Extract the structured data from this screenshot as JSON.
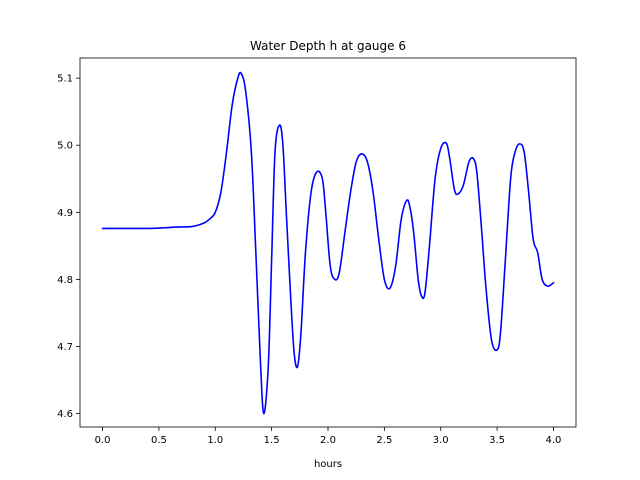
{
  "chart_data": {
    "type": "line",
    "title": "Water Depth h at gauge 6",
    "xlabel": "hours",
    "ylabel": "",
    "xlim": [
      -0.2,
      4.2
    ],
    "ylim": [
      4.58,
      5.13
    ],
    "xticks": [
      0.0,
      0.5,
      1.0,
      1.5,
      2.0,
      2.5,
      3.0,
      3.5,
      4.0
    ],
    "xtick_labels": [
      "0.0",
      "0.5",
      "1.0",
      "1.5",
      "2.0",
      "2.5",
      "3.0",
      "3.5",
      "4.0"
    ],
    "yticks": [
      4.6,
      4.7,
      4.8,
      4.9,
      5.0,
      5.1
    ],
    "ytick_labels": [
      "4.6",
      "4.7",
      "4.8",
      "4.9",
      "5.0",
      "5.1"
    ],
    "grid": false,
    "legend": "none",
    "series": [
      {
        "color": "#0000ff",
        "x": [
          0.0,
          0.2,
          0.4,
          0.55,
          0.65,
          0.8,
          0.9,
          0.95,
          1.0,
          1.05,
          1.1,
          1.15,
          1.2,
          1.23,
          1.27,
          1.32,
          1.36,
          1.4,
          1.43,
          1.47,
          1.5,
          1.53,
          1.57,
          1.6,
          1.63,
          1.67,
          1.7,
          1.73,
          1.76,
          1.8,
          1.85,
          1.9,
          1.95,
          1.98,
          2.02,
          2.06,
          2.1,
          2.15,
          2.2,
          2.25,
          2.3,
          2.35,
          2.4,
          2.45,
          2.5,
          2.55,
          2.6,
          2.65,
          2.7,
          2.73,
          2.76,
          2.8,
          2.83,
          2.86,
          2.9,
          2.95,
          3.0,
          3.05,
          3.08,
          3.12,
          3.15,
          3.2,
          3.25,
          3.29,
          3.32,
          3.36,
          3.4,
          3.45,
          3.5,
          3.53,
          3.57,
          3.62,
          3.66,
          3.7,
          3.74,
          3.78,
          3.82,
          3.86,
          3.9,
          3.95,
          4.0
        ],
        "y": [
          4.876,
          4.876,
          4.876,
          4.877,
          4.878,
          4.879,
          4.884,
          4.89,
          4.9,
          4.93,
          4.99,
          5.06,
          5.1,
          5.107,
          5.08,
          4.99,
          4.84,
          4.68,
          4.6,
          4.67,
          4.83,
          4.99,
          5.03,
          5.0,
          4.9,
          4.77,
          4.69,
          4.67,
          4.72,
          4.84,
          4.93,
          4.96,
          4.95,
          4.9,
          4.82,
          4.8,
          4.81,
          4.87,
          4.93,
          4.975,
          4.987,
          4.975,
          4.93,
          4.86,
          4.8,
          4.787,
          4.82,
          4.89,
          4.918,
          4.905,
          4.87,
          4.8,
          4.775,
          4.78,
          4.85,
          4.95,
          4.995,
          5.003,
          4.98,
          4.935,
          4.927,
          4.94,
          4.975,
          4.98,
          4.96,
          4.88,
          4.79,
          4.71,
          4.695,
          4.72,
          4.82,
          4.95,
          4.99,
          5.002,
          4.99,
          4.93,
          4.86,
          4.84,
          4.8,
          4.79,
          4.795
        ]
      }
    ]
  }
}
